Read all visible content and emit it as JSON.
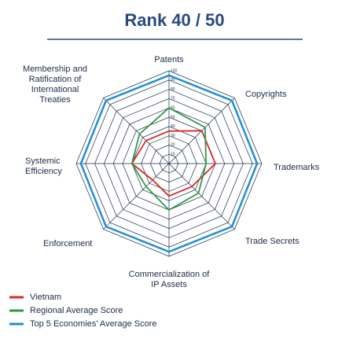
{
  "chart_data": {
    "type": "radar",
    "title": "Rank 40 / 50",
    "categories": [
      "Patents",
      "Copyrights",
      "Trademarks",
      "Trade Secrets",
      "Commercialization of IP Assets",
      "Enforcement",
      "Systemic Efficiency",
      "Membership and Ratification of International Treaties"
    ],
    "rlim": [
      0,
      100
    ],
    "rticks": [
      10,
      20,
      30,
      40,
      50,
      60,
      70,
      80,
      90,
      100
    ],
    "series": [
      {
        "name": "Vietnam",
        "color": "#d62b2b",
        "values": [
          35,
          50,
          50,
          35,
          35,
          25,
          40,
          35
        ]
      },
      {
        "name": "Regional Average Score",
        "color": "#2e9a4a",
        "values": [
          60,
          55,
          40,
          45,
          50,
          35,
          40,
          45
        ]
      },
      {
        "name": "Top 5 Economies' Average Score",
        "color": "#1f8fd6",
        "values": [
          95,
          96,
          95,
          96,
          95,
          96,
          95,
          96
        ]
      }
    ]
  }
}
